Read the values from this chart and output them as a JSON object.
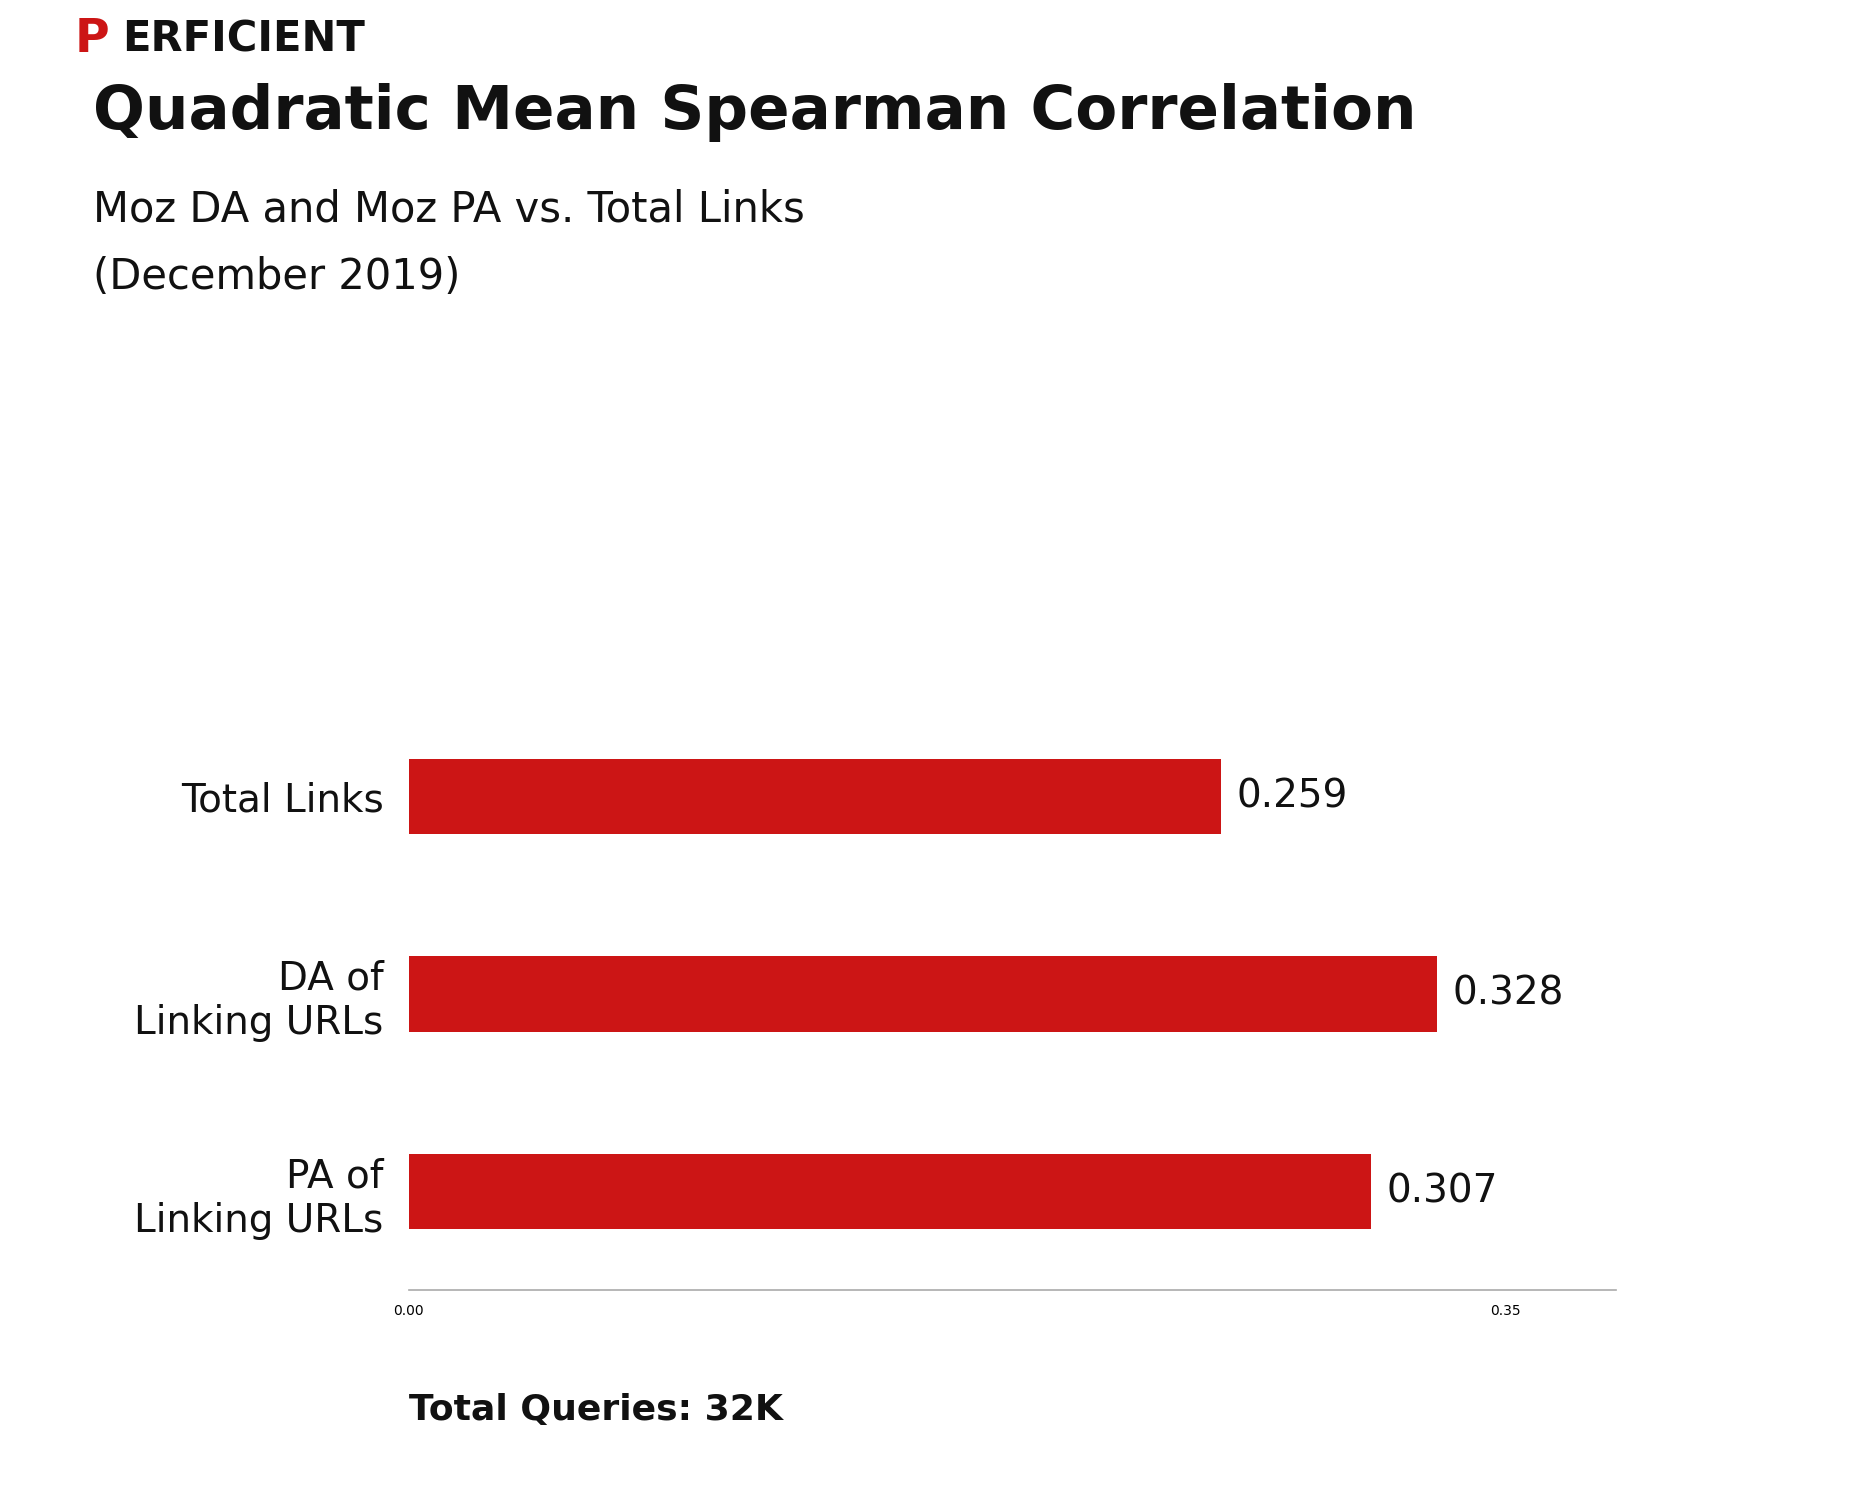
{
  "title": "Quadratic Mean Spearman Correlation",
  "subtitle_line1": "Moz DA and Moz PA vs. Total Links",
  "subtitle_line2": "(December 2019)",
  "categories": [
    "Total Links",
    "DA of\nLinking URLs",
    "PA of\nLinking URLs"
  ],
  "values": [
    0.259,
    0.328,
    0.307
  ],
  "bar_color": "#cc1515",
  "bar_labels": [
    "0.259",
    "0.328",
    "0.307"
  ],
  "xlim": [
    0,
    0.385
  ],
  "xticks": [
    0.0,
    0.35
  ],
  "xtick_labels": [
    "0.00",
    "0.35"
  ],
  "xlabel_note": "Total Queries: 32K",
  "background_color": "#ffffff",
  "title_fontsize": 44,
  "subtitle_fontsize": 30,
  "ytick_fontsize": 28,
  "xtick_fontsize": 24,
  "bar_label_fontsize": 28,
  "note_fontsize": 26,
  "logo_color_P": "#cc1515",
  "logo_color_rest": "#111111"
}
